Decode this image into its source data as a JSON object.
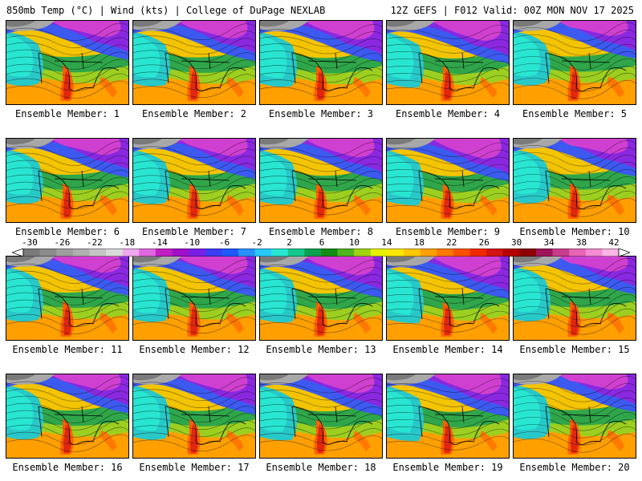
{
  "header": {
    "left": "850mb Temp (°C) | Wind (kts) | College of DuPage NEXLAB",
    "right": "12Z GEFS | F012 Valid: 00Z MON NOV 17 2025"
  },
  "member_prefix": "Ensemble Member:",
  "members": [
    1,
    2,
    3,
    4,
    5,
    6,
    7,
    8,
    9,
    10,
    11,
    12,
    13,
    14,
    15,
    16,
    17,
    18,
    19,
    20
  ],
  "colorbar": {
    "ticks": [
      "-30",
      "-26",
      "-22",
      "-18",
      "-14",
      "-10",
      "-6",
      "-2",
      "2",
      "6",
      "10",
      "14",
      "18",
      "22",
      "26",
      "30",
      "34",
      "38",
      "42"
    ],
    "colors": [
      "#7a7a7a",
      "#8c8c8c",
      "#9e9e9e",
      "#b0b0b0",
      "#c4c4c4",
      "#d9d9d9",
      "#f0a8f0",
      "#e066e0",
      "#c020c0",
      "#a010c8",
      "#7a1ee6",
      "#3c3cf0",
      "#1e5aff",
      "#2890ff",
      "#28c8ff",
      "#28e6d2",
      "#14c88c",
      "#0aa050",
      "#148c14",
      "#50b41e",
      "#a0d214",
      "#e6f000",
      "#ffe600",
      "#ffc800",
      "#ffa000",
      "#ff7800",
      "#ff5000",
      "#f02800",
      "#d21414",
      "#b40000",
      "#8c0000",
      "#a0145a",
      "#c83c8c",
      "#e664b4",
      "#f58cd2",
      "#ffb4e6"
    ]
  }
}
